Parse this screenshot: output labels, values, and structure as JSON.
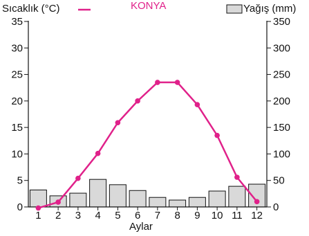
{
  "chart_data": {
    "type": "bar+line",
    "title": "KONYA",
    "xlabel": "Aylar",
    "categories": [
      "1",
      "2",
      "3",
      "4",
      "5",
      "6",
      "7",
      "8",
      "9",
      "10",
      "11",
      "12"
    ],
    "series": [
      {
        "name": "Sıcaklık (°C)",
        "type": "line",
        "axis": "left",
        "color": "#e0218a",
        "values": [
          -0.2,
          0.9,
          5.4,
          10.1,
          15.9,
          20.0,
          23.5,
          23.5,
          19.3,
          13.5,
          5.6,
          1.0
        ]
      },
      {
        "name": "Yağış (mm)",
        "type": "bar",
        "axis": "right",
        "color": "#d9d9d9",
        "values": [
          32,
          21,
          26,
          52,
          42,
          31,
          18,
          13,
          18,
          30,
          39,
          43
        ]
      }
    ],
    "y_left": {
      "ylim": [
        0,
        35
      ],
      "ticks": [
        "0",
        "5",
        "10",
        "15",
        "20",
        "25",
        "30",
        "35"
      ]
    },
    "y_right": {
      "ylim": [
        0,
        350
      ],
      "ticks": [
        "0",
        "50",
        "100",
        "150",
        "200",
        "250",
        "300",
        "350"
      ]
    },
    "grid": false,
    "legend": "top"
  }
}
